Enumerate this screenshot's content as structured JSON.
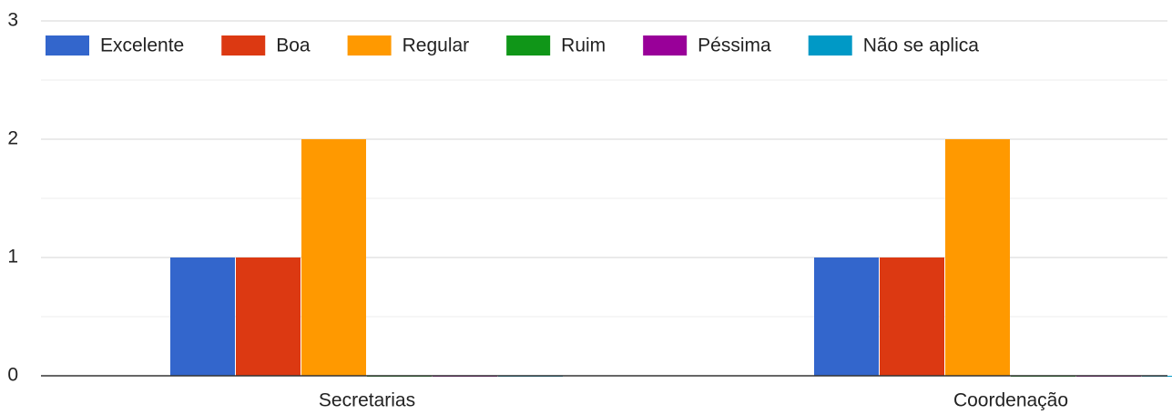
{
  "chart_data": {
    "type": "bar",
    "categories": [
      "Secretarias",
      "Coordenação"
    ],
    "series": [
      {
        "name": "Excelente",
        "color": "#3366cc",
        "values": [
          1,
          1
        ]
      },
      {
        "name": "Boa",
        "color": "#dc3912",
        "values": [
          1,
          1
        ]
      },
      {
        "name": "Regular",
        "color": "#ff9900",
        "values": [
          2,
          2
        ]
      },
      {
        "name": "Ruim",
        "color": "#109618",
        "values": [
          0,
          0
        ]
      },
      {
        "name": "Péssima",
        "color": "#990099",
        "values": [
          0,
          0
        ]
      },
      {
        "name": "Não se aplica",
        "color": "#0099c6",
        "values": [
          0,
          0
        ]
      }
    ],
    "ylim": [
      0,
      3
    ],
    "yticks": [
      0,
      1,
      2,
      3
    ],
    "grid": true,
    "legend": "top"
  }
}
